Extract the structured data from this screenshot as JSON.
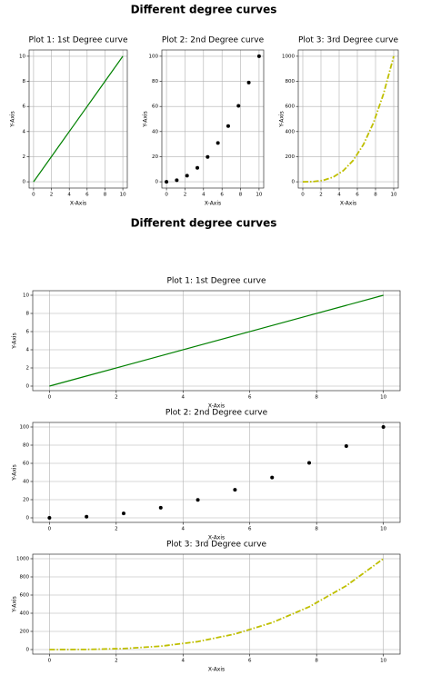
{
  "figure_titles": [
    "Different degree curves",
    "Different degree curves"
  ],
  "chart_data": [
    {
      "type": "line",
      "title": "Plot 1: 1st Degree curve",
      "x_label": "X-Axis",
      "y_label": "Y-Axis",
      "x": [
        0,
        1.111,
        2.222,
        3.333,
        4.444,
        5.556,
        6.667,
        7.778,
        8.889,
        10
      ],
      "values": [
        0,
        1.111,
        2.222,
        3.333,
        4.444,
        5.556,
        6.667,
        7.778,
        8.889,
        10
      ],
      "color": "#008000",
      "linestyle": "solid",
      "xlim": [
        -0.5,
        10.5
      ],
      "ylim": [
        -0.5,
        10.5
      ],
      "xticks": [
        0,
        2,
        4,
        6,
        8,
        10
      ],
      "yticks": [
        0,
        2,
        4,
        6,
        8,
        10
      ],
      "grid": true
    },
    {
      "type": "scatter",
      "title": "Plot 2: 2nd Degree curve",
      "x_label": "X-Axis",
      "y_label": "Y-Axis",
      "x": [
        0,
        1.111,
        2.222,
        3.333,
        4.444,
        5.556,
        6.667,
        7.778,
        8.889,
        10
      ],
      "values": [
        0,
        1.2,
        4.9,
        11.1,
        19.8,
        30.9,
        44.4,
        60.5,
        79,
        100
      ],
      "color": "#000000",
      "xlim": [
        -0.5,
        10.5
      ],
      "ylim": [
        -5,
        105
      ],
      "xticks": [
        0,
        2,
        4,
        6,
        8,
        10
      ],
      "yticks": [
        0,
        20,
        40,
        60,
        80,
        100
      ],
      "grid": true
    },
    {
      "type": "line",
      "title": "Plot 3: 3rd Degree curve",
      "x_label": "X-Axis",
      "y_label": "Y-Axis",
      "x": [
        0,
        1.111,
        2.222,
        3.333,
        4.444,
        5.556,
        6.667,
        7.778,
        8.889,
        10
      ],
      "values": [
        0,
        1.4,
        11,
        37,
        87.8,
        171.5,
        296.3,
        470.5,
        702.3,
        1000
      ],
      "color": "#bfbf00",
      "linestyle": "dashdot",
      "xlim": [
        -0.5,
        10.5
      ],
      "ylim": [
        -50,
        1050
      ],
      "xticks": [
        0,
        2,
        4,
        6,
        8,
        10
      ],
      "yticks": [
        0,
        200,
        400,
        600,
        800,
        1000
      ],
      "grid": true
    },
    {
      "type": "line",
      "title": "Plot 1: 1st Degree curve",
      "x_label": "X-Axis",
      "y_label": "Y-Axis",
      "x": [
        0,
        1.111,
        2.222,
        3.333,
        4.444,
        5.556,
        6.667,
        7.778,
        8.889,
        10
      ],
      "values": [
        0,
        1.111,
        2.222,
        3.333,
        4.444,
        5.556,
        6.667,
        7.778,
        8.889,
        10
      ],
      "color": "#008000",
      "linestyle": "solid",
      "xlim": [
        -0.5,
        10.5
      ],
      "ylim": [
        -0.5,
        10.5
      ],
      "xticks": [
        0,
        2,
        4,
        6,
        8,
        10
      ],
      "yticks": [
        0,
        2,
        4,
        6,
        8,
        10
      ],
      "grid": true
    },
    {
      "type": "scatter",
      "title": "Plot 2: 2nd Degree curve",
      "x_label": "X-Axis",
      "y_label": "Y-Axis",
      "x": [
        0,
        1.111,
        2.222,
        3.333,
        4.444,
        5.556,
        6.667,
        7.778,
        8.889,
        10
      ],
      "values": [
        0,
        1.2,
        4.9,
        11.1,
        19.8,
        30.9,
        44.4,
        60.5,
        79,
        100
      ],
      "color": "#000000",
      "xlim": [
        -0.5,
        10.5
      ],
      "ylim": [
        -5,
        105
      ],
      "xticks": [
        0,
        2,
        4,
        6,
        8,
        10
      ],
      "yticks": [
        0,
        20,
        40,
        60,
        80,
        100
      ],
      "grid": true
    },
    {
      "type": "line",
      "title": "Plot 3: 3rd Degree curve",
      "x_label": "X-Axis",
      "y_label": "Y-Axis",
      "x": [
        0,
        1.111,
        2.222,
        3.333,
        4.444,
        5.556,
        6.667,
        7.778,
        8.889,
        10
      ],
      "values": [
        0,
        1.4,
        11,
        37,
        87.8,
        171.5,
        296.3,
        470.5,
        702.3,
        1000
      ],
      "color": "#bfbf00",
      "linestyle": "dashdot",
      "xlim": [
        -0.5,
        10.5
      ],
      "ylim": [
        -50,
        1050
      ],
      "xticks": [
        0,
        2,
        4,
        6,
        8,
        10
      ],
      "yticks": [
        0,
        200,
        400,
        600,
        800,
        1000
      ],
      "grid": true
    }
  ]
}
